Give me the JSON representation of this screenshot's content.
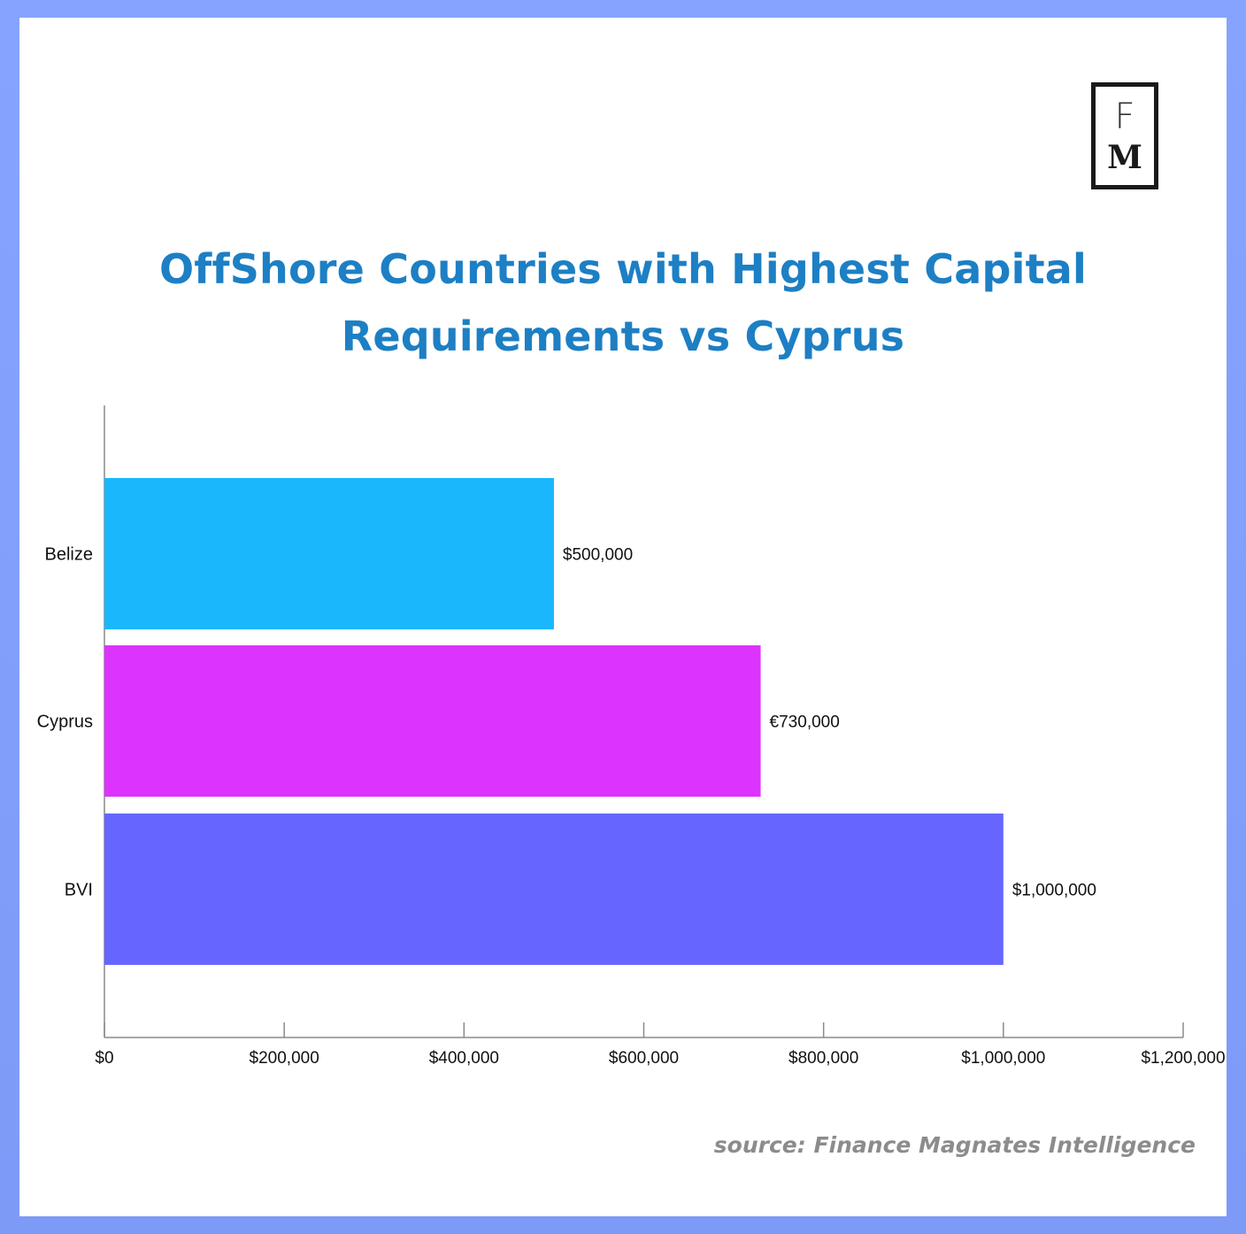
{
  "logo": {
    "letter_top": "F",
    "letter_bottom": "M"
  },
  "title_lines": [
    "OffShore Countries with Highest Capital",
    "Requirements vs Cyprus"
  ],
  "source": "source: Finance Magnates Intelligence",
  "colors": {
    "belize": "#1ab7fc",
    "cyprus": "#dd33ff",
    "bvi": "#6666ff",
    "title": "#1d7fc4",
    "frame": "#7f9cfa"
  },
  "chart_data": {
    "type": "bar",
    "orientation": "horizontal",
    "title": "OffShore Countries with Highest Capital Requirements vs Cyprus",
    "categories": [
      "Belize",
      "Cyprus",
      "BVI"
    ],
    "values": [
      500000,
      730000,
      1000000
    ],
    "data_labels": [
      "$500,000",
      "€730,000",
      "$1,000,000"
    ],
    "bar_colors": [
      "#1ab7fc",
      "#dd33ff",
      "#6666ff"
    ],
    "xlim": [
      0,
      1200000
    ],
    "x_ticks": [
      0,
      200000,
      400000,
      600000,
      800000,
      1000000,
      1200000
    ],
    "x_tick_labels": [
      "$0",
      "$200,000",
      "$400,000",
      "$600,000",
      "$800,000",
      "$1,000,000",
      "$1,200,000"
    ],
    "xlabel": "",
    "ylabel": "",
    "grid": false,
    "legend": "none"
  }
}
